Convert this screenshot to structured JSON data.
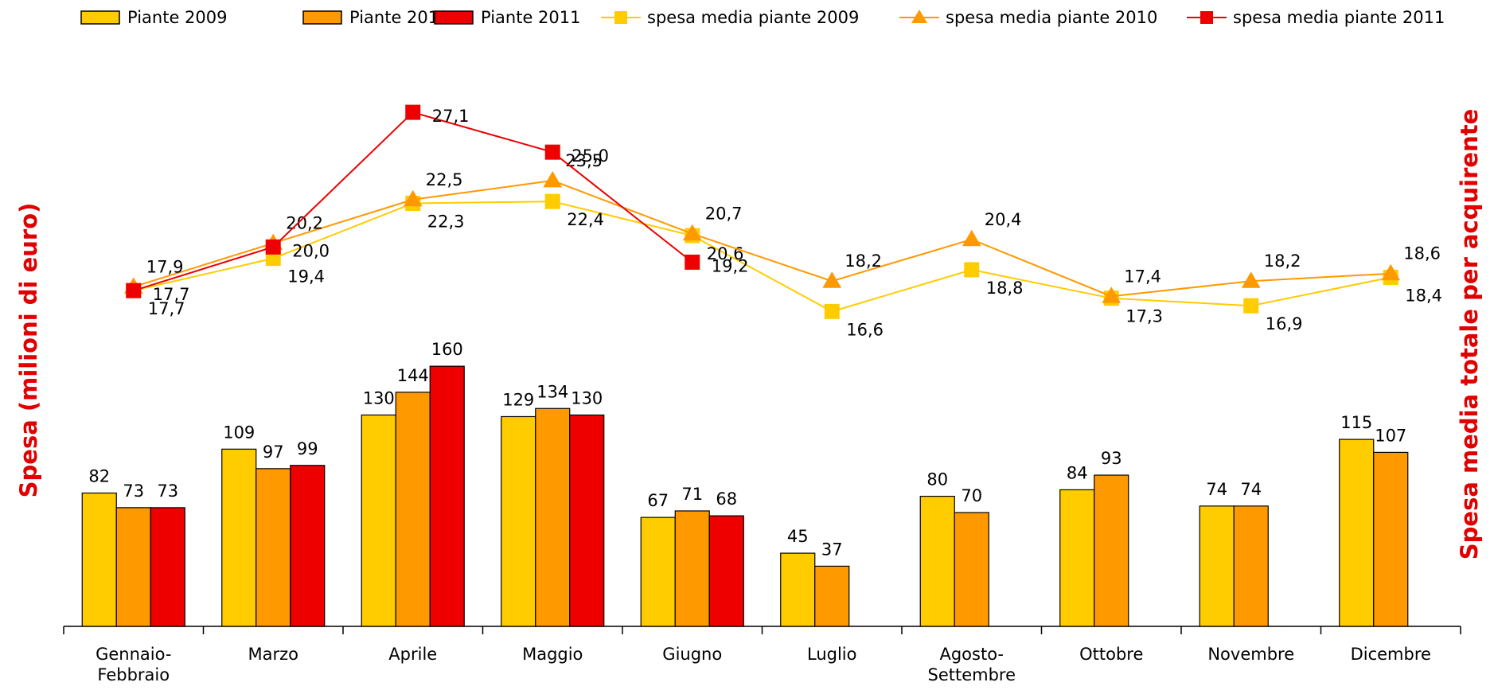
{
  "chart_data": {
    "type": "bar",
    "categories": [
      "Gennaio-Febbraio",
      "Marzo",
      "Aprile",
      "Maggio",
      "Giugno",
      "Luglio",
      "Agosto-Settembre",
      "Ottobre",
      "Novembre",
      "Dicembre"
    ],
    "y_label": "Spesa (milioni di euro)",
    "y2_label": "Spesa media totale per acquirente",
    "ylim": [
      0,
      350
    ],
    "y2lim": [
      0,
      30
    ],
    "series": [
      {
        "name": "Piante 2009",
        "type": "bar",
        "color": "#FFCC00",
        "values": [
          82,
          109,
          130,
          129,
          67,
          45,
          80,
          84,
          74,
          115
        ]
      },
      {
        "name": "Piante 2010",
        "type": "bar",
        "color": "#FF9900",
        "values": [
          73,
          97,
          144,
          134,
          71,
          37,
          70,
          93,
          74,
          107
        ]
      },
      {
        "name": "Piante 2011",
        "type": "bar",
        "color": "#EE0000",
        "values": [
          73,
          99,
          160,
          130,
          68,
          null,
          null,
          null,
          null,
          null
        ]
      },
      {
        "name": "spesa media piante 2009",
        "type": "line",
        "axis": "y2",
        "marker": "square",
        "color": "#FFCC00",
        "values": [
          17.7,
          19.4,
          22.3,
          22.4,
          20.6,
          16.6,
          18.8,
          17.3,
          16.9,
          18.4
        ],
        "value_labels": [
          "17,7",
          "19,4",
          "22,3",
          "22,4",
          "20,6",
          "16,6",
          "18,8",
          "17,3",
          "16,9",
          "18,4"
        ]
      },
      {
        "name": "spesa media piante 2010",
        "type": "line",
        "axis": "y2",
        "marker": "triangle",
        "color": "#FF9900",
        "values": [
          17.9,
          20.2,
          22.5,
          23.5,
          20.7,
          18.2,
          20.4,
          17.4,
          18.2,
          18.6
        ],
        "value_labels": [
          "17,9",
          "20,2",
          "22,5",
          "23,5",
          "20,7",
          "18,2",
          "20,4",
          "17,4",
          "18,2",
          "18,6"
        ]
      },
      {
        "name": "spesa media piante 2011",
        "type": "line",
        "axis": "y2",
        "marker": "square",
        "color": "#EE0000",
        "values": [
          17.7,
          20.0,
          27.1,
          25.0,
          19.2,
          null,
          null,
          null,
          null,
          null
        ],
        "value_labels": [
          "17,7",
          "20,0",
          "27,1",
          "25,0",
          "19,2",
          null,
          null,
          null,
          null,
          null
        ]
      }
    ],
    "legend": "top"
  }
}
